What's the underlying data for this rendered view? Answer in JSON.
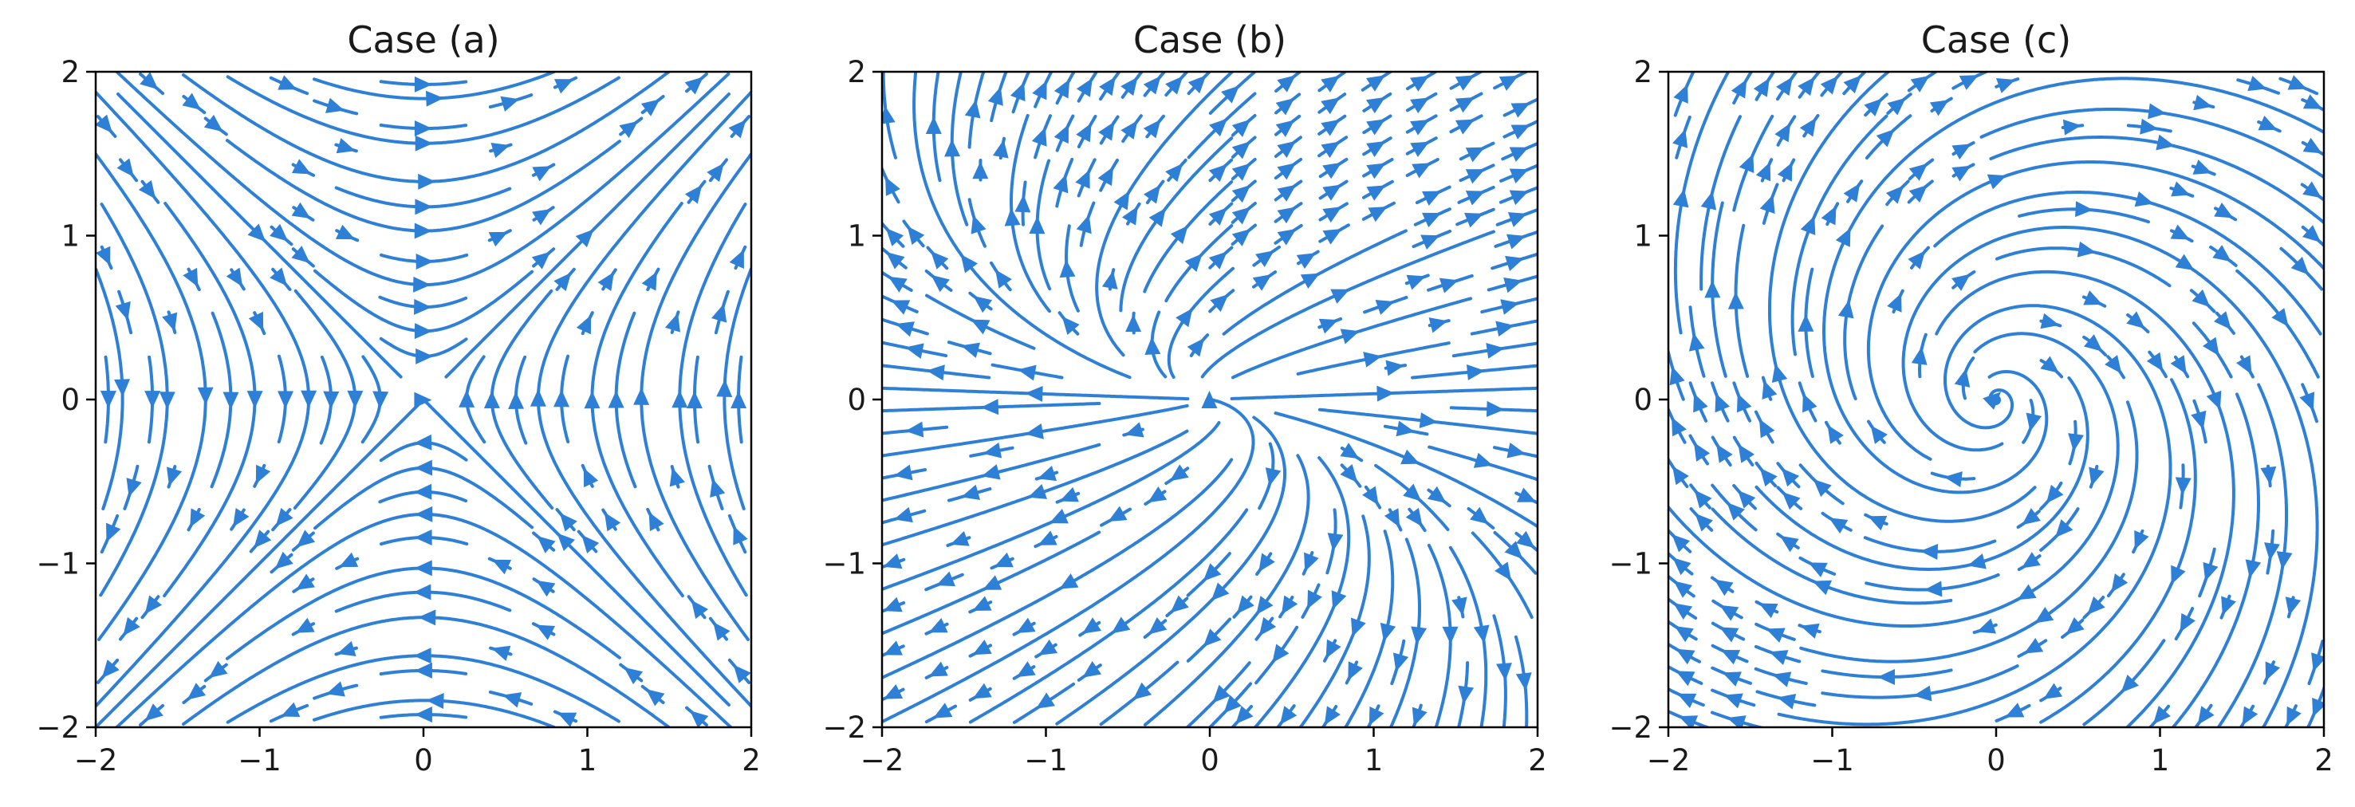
{
  "figure": {
    "background": "#ffffff",
    "stream_color": "#2e7fd6",
    "axis_color": "#000000"
  },
  "chart_data": [
    {
      "type": "streamplot",
      "title": "Case (a)",
      "xlim": [
        -2,
        2
      ],
      "ylim": [
        -2,
        2
      ],
      "x_ticks": [
        "−2",
        "−1",
        "0",
        "1",
        "2"
      ],
      "y_ticks": [
        "2",
        "1",
        "0",
        "−1",
        "−2"
      ],
      "field": {
        "dx": "y",
        "dy": "x"
      },
      "equilibrium": [
        0,
        0
      ],
      "grid": false,
      "legend": "none"
    },
    {
      "type": "streamplot",
      "title": "Case (b)",
      "xlim": [
        -2,
        2
      ],
      "ylim": [
        -2,
        2
      ],
      "x_ticks": [
        "−2",
        "−1",
        "0",
        "1",
        "2"
      ],
      "y_ticks": [
        "2",
        "1",
        "0",
        "−1",
        "−2"
      ],
      "field": {
        "dx": "x + y",
        "dy": "y"
      },
      "equilibrium": [
        0,
        0
      ],
      "grid": false,
      "legend": "none"
    },
    {
      "type": "streamplot",
      "title": "Case (c)",
      "xlim": [
        -2,
        2
      ],
      "ylim": [
        -2,
        2
      ],
      "x_ticks": [
        "−2",
        "−1",
        "0",
        "1",
        "2"
      ],
      "y_ticks": [
        "2",
        "1",
        "0",
        "−1",
        "−2"
      ],
      "field": {
        "dx": "0.4x + y",
        "dy": "-x + 0.4y"
      },
      "equilibrium": [
        0,
        0
      ],
      "grid": false,
      "legend": "none"
    }
  ]
}
